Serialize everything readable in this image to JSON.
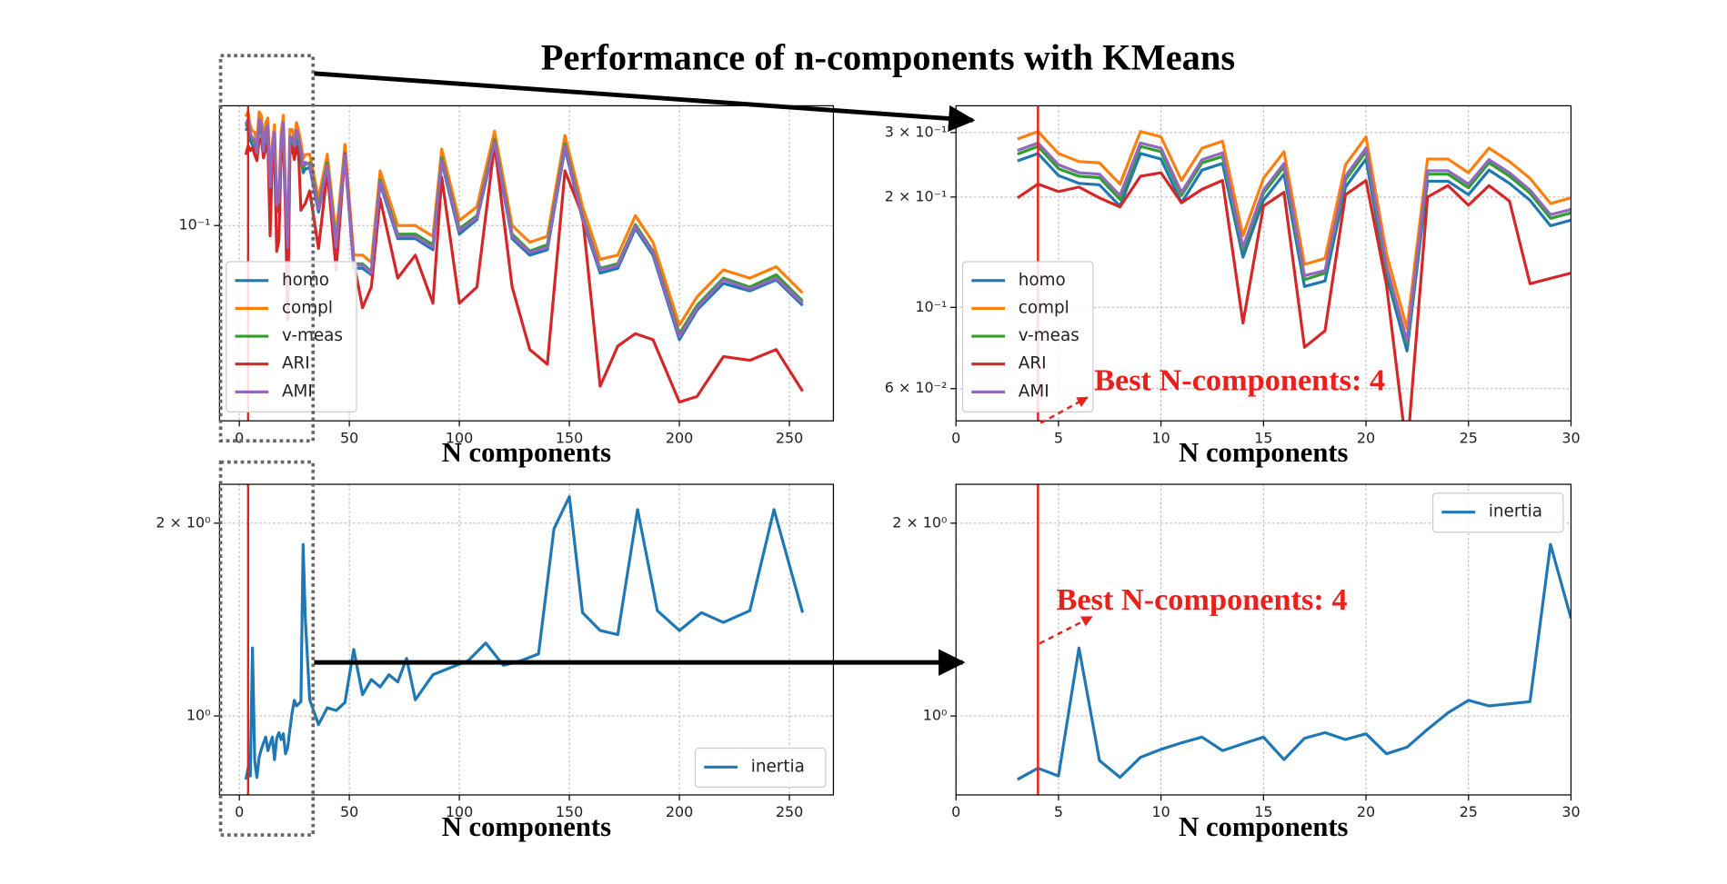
{
  "title": "Performance of n-components with KMeans",
  "chart_data": [
    {
      "type": "line",
      "xlabel": "N components",
      "yscale": "log",
      "grid": true,
      "legend": "lower left",
      "vline": 4,
      "vline_color": "#e8211d",
      "xlim": [
        -9,
        270
      ],
      "xticks": [
        0,
        50,
        100,
        150,
        200,
        250
      ],
      "ylim": [
        0.015,
        0.32
      ],
      "yticks": [
        {
          "value": 0.1,
          "label": "10⁻¹"
        }
      ],
      "x": [
        3,
        4,
        5,
        6,
        7,
        8,
        9,
        10,
        11,
        12,
        13,
        14,
        15,
        16,
        17,
        18,
        19,
        20,
        21,
        22,
        23,
        24,
        25,
        26,
        27,
        28,
        29,
        30,
        32,
        36,
        40,
        44,
        48,
        52,
        56,
        60,
        64,
        72,
        80,
        88,
        92,
        100,
        108,
        116,
        124,
        132,
        140,
        148,
        156,
        164,
        172,
        180,
        188,
        200,
        208,
        220,
        232,
        244,
        256
      ],
      "series": [
        {
          "name": "homo",
          "color": "#1f77b4",
          "values": [
            0.251,
            0.263,
            0.229,
            0.218,
            0.216,
            0.189,
            0.263,
            0.254,
            0.193,
            0.237,
            0.247,
            0.137,
            0.196,
            0.231,
            0.114,
            0.118,
            0.213,
            0.254,
            0.122,
            0.076,
            0.221,
            0.221,
            0.203,
            0.237,
            0.218,
            0.196,
            0.167,
            0.173,
            0.176,
            0.114,
            0.176,
            0.079,
            0.194,
            0.066,
            0.066,
            0.062,
            0.15,
            0.088,
            0.088,
            0.079,
            0.185,
            0.092,
            0.106,
            0.22,
            0.088,
            0.075,
            0.079,
            0.211,
            0.106,
            0.063,
            0.066,
            0.097,
            0.075,
            0.033,
            0.044,
            0.057,
            0.053,
            0.059,
            0.046
          ]
        },
        {
          "name": "compl",
          "color": "#ff7f0e",
          "values": [
            0.288,
            0.302,
            0.263,
            0.25,
            0.248,
            0.217,
            0.302,
            0.292,
            0.222,
            0.272,
            0.284,
            0.157,
            0.225,
            0.266,
            0.131,
            0.136,
            0.245,
            0.292,
            0.14,
            0.0875,
            0.254,
            0.254,
            0.233,
            0.272,
            0.25,
            0.225,
            0.192,
            0.199,
            0.2,
            0.13,
            0.2,
            0.09,
            0.22,
            0.075,
            0.075,
            0.07,
            0.17,
            0.1,
            0.1,
            0.09,
            0.21,
            0.105,
            0.12,
            0.25,
            0.1,
            0.085,
            0.09,
            0.24,
            0.12,
            0.072,
            0.075,
            0.11,
            0.085,
            0.038,
            0.05,
            0.065,
            0.06,
            0.067,
            0.052
          ]
        },
        {
          "name": "v-meas",
          "color": "#2ca02c",
          "values": [
            0.262,
            0.275,
            0.239,
            0.228,
            0.226,
            0.197,
            0.275,
            0.266,
            0.202,
            0.248,
            0.258,
            0.143,
            0.205,
            0.242,
            0.119,
            0.124,
            0.223,
            0.266,
            0.127,
            0.08,
            0.231,
            0.231,
            0.212,
            0.248,
            0.228,
            0.205,
            0.175,
            0.181,
            0.184,
            0.12,
            0.184,
            0.083,
            0.202,
            0.069,
            0.069,
            0.064,
            0.156,
            0.092,
            0.092,
            0.083,
            0.193,
            0.097,
            0.11,
            0.23,
            0.092,
            0.078,
            0.083,
            0.221,
            0.11,
            0.066,
            0.069,
            0.101,
            0.078,
            0.035,
            0.046,
            0.06,
            0.055,
            0.062,
            0.048
          ]
        },
        {
          "name": "ARI",
          "color": "#d62728",
          "values": [
            0.199,
            0.217,
            0.207,
            0.213,
            0.199,
            0.188,
            0.228,
            0.233,
            0.193,
            0.21,
            0.222,
            0.0906,
            0.189,
            0.206,
            0.0778,
            0.0863,
            0.203,
            0.222,
            0.115,
            0.04,
            0.2,
            0.215,
            0.19,
            0.215,
            0.195,
            0.116,
            0.12,
            0.124,
            0.14,
            0.08,
            0.17,
            0.065,
            0.2,
            0.07,
            0.045,
            0.055,
            0.13,
            0.06,
            0.075,
            0.047,
            0.16,
            0.047,
            0.055,
            0.22,
            0.055,
            0.03,
            0.026,
            0.17,
            0.11,
            0.021,
            0.031,
            0.035,
            0.033,
            0.018,
            0.019,
            0.028,
            0.027,
            0.03,
            0.02
          ]
        },
        {
          "name": "AMI",
          "color": "#9467bd",
          "values": [
            0.268,
            0.281,
            0.245,
            0.233,
            0.231,
            0.202,
            0.281,
            0.272,
            0.206,
            0.253,
            0.264,
            0.146,
            0.209,
            0.247,
            0.122,
            0.126,
            0.228,
            0.272,
            0.13,
            0.081,
            0.236,
            0.236,
            0.217,
            0.253,
            0.233,
            0.209,
            0.179,
            0.185,
            0.18,
            0.117,
            0.18,
            0.081,
            0.198,
            0.068,
            0.068,
            0.063,
            0.153,
            0.09,
            0.09,
            0.081,
            0.189,
            0.095,
            0.108,
            0.225,
            0.09,
            0.077,
            0.081,
            0.216,
            0.108,
            0.065,
            0.068,
            0.099,
            0.077,
            0.034,
            0.045,
            0.059,
            0.054,
            0.06,
            0.047
          ]
        }
      ]
    },
    {
      "type": "line",
      "xlabel": "N components",
      "yscale": "log",
      "grid": true,
      "legend": "lower left",
      "vline": 4,
      "vline_color": "#e8211d",
      "annotation": "Best N-components: 4",
      "xlim": [
        0,
        30
      ],
      "xticks": [
        0,
        5,
        10,
        15,
        20,
        25,
        30
      ],
      "ylim": [
        0.049,
        0.355
      ],
      "yticks": [
        {
          "value": 0.06,
          "label": "6 × 10⁻²"
        },
        {
          "value": 0.1,
          "label": "10⁻¹"
        },
        {
          "value": 0.2,
          "label": "2 × 10⁻¹"
        },
        {
          "value": 0.3,
          "label": "3 × 10⁻¹"
        }
      ],
      "x": [
        3,
        4,
        5,
        6,
        7,
        8,
        9,
        10,
        11,
        12,
        13,
        14,
        15,
        16,
        17,
        18,
        19,
        20,
        21,
        22,
        23,
        24,
        25,
        26,
        27,
        28,
        29,
        30
      ],
      "series": [
        {
          "name": "homo",
          "color": "#1f77b4",
          "values": [
            0.251,
            0.263,
            0.229,
            0.218,
            0.216,
            0.189,
            0.263,
            0.254,
            0.193,
            0.237,
            0.247,
            0.137,
            0.196,
            0.231,
            0.114,
            0.118,
            0.213,
            0.254,
            0.122,
            0.076,
            0.221,
            0.221,
            0.203,
            0.237,
            0.218,
            0.196,
            0.167,
            0.173
          ]
        },
        {
          "name": "compl",
          "color": "#ff7f0e",
          "values": [
            0.288,
            0.302,
            0.263,
            0.25,
            0.248,
            0.217,
            0.302,
            0.292,
            0.222,
            0.272,
            0.284,
            0.157,
            0.225,
            0.266,
            0.131,
            0.136,
            0.245,
            0.292,
            0.14,
            0.0875,
            0.254,
            0.254,
            0.233,
            0.272,
            0.25,
            0.225,
            0.192,
            0.199
          ]
        },
        {
          "name": "v-meas",
          "color": "#2ca02c",
          "values": [
            0.262,
            0.275,
            0.239,
            0.228,
            0.226,
            0.197,
            0.275,
            0.266,
            0.202,
            0.248,
            0.258,
            0.143,
            0.205,
            0.242,
            0.119,
            0.124,
            0.223,
            0.266,
            0.127,
            0.08,
            0.231,
            0.231,
            0.212,
            0.248,
            0.228,
            0.205,
            0.175,
            0.181
          ]
        },
        {
          "name": "ARI",
          "color": "#d62728",
          "values": [
            0.199,
            0.217,
            0.207,
            0.213,
            0.199,
            0.188,
            0.228,
            0.233,
            0.193,
            0.21,
            0.222,
            0.0906,
            0.189,
            0.206,
            0.0778,
            0.0863,
            0.203,
            0.222,
            0.115,
            0.04,
            0.2,
            0.215,
            0.19,
            0.215,
            0.195,
            0.116,
            0.12,
            0.124
          ]
        },
        {
          "name": "AMI",
          "color": "#9467bd",
          "values": [
            0.268,
            0.281,
            0.245,
            0.233,
            0.231,
            0.202,
            0.281,
            0.272,
            0.206,
            0.253,
            0.264,
            0.146,
            0.209,
            0.247,
            0.122,
            0.126,
            0.228,
            0.272,
            0.13,
            0.081,
            0.236,
            0.236,
            0.217,
            0.253,
            0.233,
            0.209,
            0.179,
            0.185
          ]
        }
      ]
    },
    {
      "type": "line",
      "xlabel": "N components",
      "yscale": "log",
      "grid": true,
      "legend": "lower right",
      "vline": 4,
      "vline_color": "#e8211d",
      "xlim": [
        -9,
        270
      ],
      "xticks": [
        0,
        50,
        100,
        150,
        200,
        250
      ],
      "ylim": [
        0.753,
        2.3
      ],
      "yticks": [
        {
          "value": 1,
          "label": "10⁰"
        },
        {
          "value": 2,
          "label": "2 × 10⁰"
        }
      ],
      "x": [
        3,
        4,
        5,
        6,
        7,
        8,
        9,
        10,
        11,
        12,
        13,
        14,
        15,
        16,
        17,
        18,
        19,
        20,
        21,
        22,
        23,
        24,
        25,
        26,
        27,
        28,
        29,
        30,
        32,
        36,
        40,
        44,
        48,
        52,
        56,
        60,
        64,
        68,
        72,
        76,
        80,
        88,
        96,
        104,
        112,
        120,
        128,
        136,
        143,
        150,
        156,
        164,
        172,
        181,
        190,
        200,
        210,
        220,
        232,
        243,
        256
      ],
      "series": [
        {
          "name": "inertia",
          "color": "#1f77b4",
          "values": [
            0.796,
            0.829,
            0.806,
            1.277,
            0.852,
            0.802,
            0.862,
            0.887,
            0.908,
            0.927,
            0.883,
            0.905,
            0.927,
            0.855,
            0.923,
            0.942,
            0.919,
            0.938,
            0.873,
            0.894,
            0.953,
            1.012,
            1.058,
            1.037,
            1.045,
            1.053,
            1.853,
            1.42,
            1.06,
            0.97,
            1.03,
            1.02,
            1.05,
            1.27,
            1.08,
            1.14,
            1.11,
            1.16,
            1.13,
            1.23,
            1.06,
            1.16,
            1.19,
            1.22,
            1.3,
            1.2,
            1.22,
            1.25,
            1.96,
            2.2,
            1.45,
            1.36,
            1.34,
            2.1,
            1.46,
            1.36,
            1.45,
            1.4,
            1.46,
            2.1,
            1.45
          ]
        }
      ]
    },
    {
      "type": "line",
      "xlabel": "N components",
      "yscale": "log",
      "grid": true,
      "legend": "upper right",
      "vline": 4,
      "vline_color": "#e8211d",
      "annotation": "Best N-components: 4",
      "xlim": [
        0,
        30
      ],
      "xticks": [
        0,
        5,
        10,
        15,
        20,
        25,
        30
      ],
      "ylim": [
        0.753,
        2.3
      ],
      "yticks": [
        {
          "value": 1,
          "label": "10⁰"
        },
        {
          "value": 2,
          "label": "2 × 10⁰"
        }
      ],
      "x": [
        3,
        4,
        5,
        6,
        7,
        8,
        9,
        10,
        11,
        12,
        13,
        14,
        15,
        16,
        17,
        18,
        19,
        20,
        21,
        22,
        23,
        24,
        25,
        26,
        27,
        28,
        29,
        30
      ],
      "series": [
        {
          "name": "inertia",
          "color": "#1f77b4",
          "values": [
            0.796,
            0.829,
            0.806,
            1.277,
            0.852,
            0.802,
            0.862,
            0.887,
            0.908,
            0.927,
            0.883,
            0.905,
            0.927,
            0.855,
            0.923,
            0.942,
            0.919,
            0.938,
            0.873,
            0.894,
            0.953,
            1.012,
            1.058,
            1.037,
            1.045,
            1.053,
            1.853,
            1.42
          ]
        }
      ]
    }
  ]
}
